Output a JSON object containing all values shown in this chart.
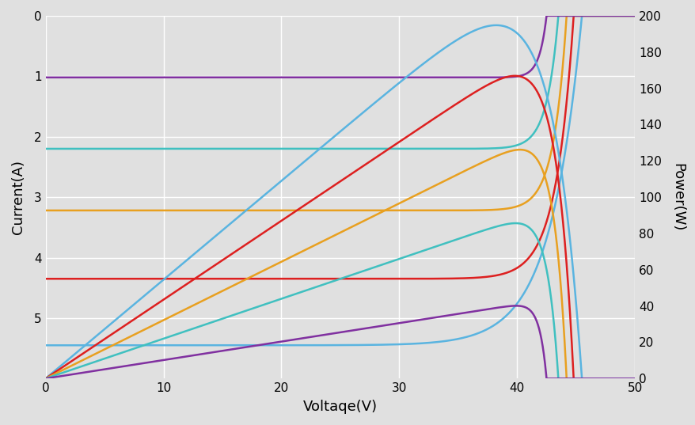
{
  "xlabel": "Voltaqe(V)",
  "ylabel_left": "Current(A)",
  "ylabel_right": "Power(W)",
  "xlim": [
    0,
    50
  ],
  "ylim_left": [
    6,
    0
  ],
  "ylim_right": [
    0,
    200
  ],
  "background_color": "#e0e0e0",
  "plot_background": "#e0e0e0",
  "grid_color": "#ffffff",
  "iv_curves": [
    {
      "Isc": 5.45,
      "Voc": 45.5,
      "Vmpp": 37.5,
      "Impp": 5.18,
      "color": "#5ab4e0"
    },
    {
      "Isc": 4.35,
      "Voc": 44.8,
      "Vmpp": 40.5,
      "Impp": 4.1,
      "color": "#dd2020"
    },
    {
      "Isc": 3.22,
      "Voc": 44.2,
      "Vmpp": 41.0,
      "Impp": 3.05,
      "color": "#e8a020"
    },
    {
      "Isc": 2.2,
      "Voc": 43.5,
      "Vmpp": 41.5,
      "Impp": 1.92,
      "color": "#40c0c0"
    },
    {
      "Isc": 1.02,
      "Voc": 42.5,
      "Vmpp": 41.5,
      "Impp": 0.82,
      "color": "#8030a0"
    }
  ],
  "xticks": [
    0,
    10,
    20,
    30,
    40,
    50
  ],
  "yticks_left": [
    0,
    1,
    2,
    3,
    4,
    5
  ],
  "yticks_right": [
    0,
    20,
    40,
    60,
    80,
    100,
    120,
    140,
    160,
    180,
    200
  ],
  "figsize": [
    8.79,
    5.37
  ],
  "dpi": 100
}
